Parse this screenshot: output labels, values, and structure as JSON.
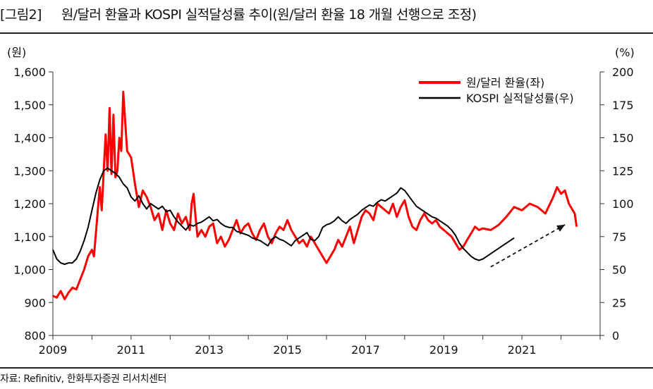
{
  "header": {
    "tag": "[그림2]",
    "title": "원/달러 환율과 KOSPI 실적달성률 추이(원/달러 환율 18 개월 선행으로 조정)"
  },
  "footer": {
    "source": "자료: Refinitiv, 한화투자증권 리서치센터"
  },
  "chart_data": {
    "type": "line",
    "title": "원/달러 환율과 KOSPI 실적달성률 추이(원/달러 환율 18 개월 선행으로 조정)",
    "left_axis": {
      "label": "(원)",
      "range": [
        800,
        1600
      ],
      "ticks": [
        "800",
        "900",
        "1,000",
        "1,100",
        "1,200",
        "1,300",
        "1,400",
        "1,500",
        "1,600"
      ]
    },
    "right_axis": {
      "label": "(%)",
      "range": [
        0,
        200
      ],
      "ticks": [
        "0",
        "25",
        "50",
        "75",
        "100",
        "125",
        "150",
        "175",
        "200"
      ]
    },
    "x_axis": {
      "range": [
        2009,
        2023
      ],
      "ticks": [
        "2009",
        "2011",
        "2013",
        "2015",
        "2017",
        "2019",
        "2021"
      ]
    },
    "legend_position": "top-right",
    "series": [
      {
        "name": "원/달러 환율(좌)",
        "axis": "left",
        "color": "#ff0000",
        "points": [
          [
            2009.0,
            920
          ],
          [
            2009.1,
            915
          ],
          [
            2009.2,
            935
          ],
          [
            2009.3,
            910
          ],
          [
            2009.4,
            930
          ],
          [
            2009.5,
            945
          ],
          [
            2009.6,
            940
          ],
          [
            2009.7,
            970
          ],
          [
            2009.8,
            1000
          ],
          [
            2009.9,
            1040
          ],
          [
            2010.0,
            1060
          ],
          [
            2010.05,
            1040
          ],
          [
            2010.1,
            1110
          ],
          [
            2010.15,
            1180
          ],
          [
            2010.2,
            1250
          ],
          [
            2010.25,
            1180
          ],
          [
            2010.3,
            1300
          ],
          [
            2010.35,
            1410
          ],
          [
            2010.4,
            1300
          ],
          [
            2010.45,
            1490
          ],
          [
            2010.5,
            1290
          ],
          [
            2010.55,
            1470
          ],
          [
            2010.6,
            1280
          ],
          [
            2010.65,
            1300
          ],
          [
            2010.7,
            1400
          ],
          [
            2010.75,
            1360
          ],
          [
            2010.8,
            1540
          ],
          [
            2010.85,
            1450
          ],
          [
            2010.9,
            1360
          ],
          [
            2011.0,
            1340
          ],
          [
            2011.1,
            1260
          ],
          [
            2011.2,
            1190
          ],
          [
            2011.3,
            1240
          ],
          [
            2011.4,
            1220
          ],
          [
            2011.5,
            1190
          ],
          [
            2011.6,
            1150
          ],
          [
            2011.7,
            1170
          ],
          [
            2011.8,
            1120
          ],
          [
            2011.9,
            1180
          ],
          [
            2012.0,
            1140
          ],
          [
            2012.1,
            1120
          ],
          [
            2012.2,
            1170
          ],
          [
            2012.3,
            1140
          ],
          [
            2012.4,
            1160
          ],
          [
            2012.5,
            1120
          ],
          [
            2012.55,
            1200
          ],
          [
            2012.6,
            1230
          ],
          [
            2012.65,
            1160
          ],
          [
            2012.7,
            1100
          ],
          [
            2012.8,
            1120
          ],
          [
            2012.9,
            1100
          ],
          [
            2013.0,
            1130
          ],
          [
            2013.1,
            1140
          ],
          [
            2013.2,
            1080
          ],
          [
            2013.3,
            1100
          ],
          [
            2013.4,
            1070
          ],
          [
            2013.5,
            1090
          ],
          [
            2013.6,
            1120
          ],
          [
            2013.7,
            1150
          ],
          [
            2013.8,
            1110
          ],
          [
            2013.9,
            1130
          ],
          [
            2014.0,
            1140
          ],
          [
            2014.1,
            1110
          ],
          [
            2014.2,
            1090
          ],
          [
            2014.3,
            1120
          ],
          [
            2014.4,
            1140
          ],
          [
            2014.5,
            1100
          ],
          [
            2014.6,
            1080
          ],
          [
            2014.7,
            1110
          ],
          [
            2014.8,
            1130
          ],
          [
            2014.9,
            1120
          ],
          [
            2015.0,
            1150
          ],
          [
            2015.1,
            1120
          ],
          [
            2015.2,
            1100
          ],
          [
            2015.3,
            1080
          ],
          [
            2015.4,
            1090
          ],
          [
            2015.5,
            1070
          ],
          [
            2015.6,
            1100
          ],
          [
            2015.7,
            1080
          ],
          [
            2015.8,
            1060
          ],
          [
            2015.9,
            1040
          ],
          [
            2016.0,
            1020
          ],
          [
            2016.1,
            1040
          ],
          [
            2016.2,
            1060
          ],
          [
            2016.3,
            1090
          ],
          [
            2016.4,
            1070
          ],
          [
            2016.5,
            1100
          ],
          [
            2016.6,
            1130
          ],
          [
            2016.7,
            1080
          ],
          [
            2016.8,
            1120
          ],
          [
            2016.9,
            1160
          ],
          [
            2017.0,
            1180
          ],
          [
            2017.1,
            1170
          ],
          [
            2017.2,
            1150
          ],
          [
            2017.3,
            1200
          ],
          [
            2017.4,
            1190
          ],
          [
            2017.5,
            1180
          ],
          [
            2017.6,
            1170
          ],
          [
            2017.7,
            1200
          ],
          [
            2017.8,
            1160
          ],
          [
            2017.9,
            1190
          ],
          [
            2018.0,
            1210
          ],
          [
            2018.1,
            1160
          ],
          [
            2018.2,
            1130
          ],
          [
            2018.3,
            1120
          ],
          [
            2018.4,
            1150
          ],
          [
            2018.5,
            1170
          ],
          [
            2018.6,
            1150
          ],
          [
            2018.7,
            1140
          ],
          [
            2018.8,
            1150
          ],
          [
            2018.9,
            1130
          ],
          [
            2019.0,
            1120
          ],
          [
            2019.1,
            1110
          ],
          [
            2019.2,
            1100
          ],
          [
            2019.3,
            1080
          ],
          [
            2019.4,
            1060
          ],
          [
            2019.5,
            1070
          ],
          [
            2019.6,
            1090
          ],
          [
            2019.7,
            1110
          ],
          [
            2019.8,
            1130
          ],
          [
            2019.9,
            1120
          ],
          [
            2020.0,
            1125
          ],
          [
            2020.2,
            1120
          ],
          [
            2020.4,
            1135
          ],
          [
            2020.6,
            1160
          ],
          [
            2020.8,
            1190
          ],
          [
            2021.0,
            1180
          ],
          [
            2021.2,
            1200
          ],
          [
            2021.4,
            1190
          ],
          [
            2021.6,
            1170
          ],
          [
            2021.8,
            1220
          ],
          [
            2021.9,
            1250
          ],
          [
            2022.0,
            1230
          ],
          [
            2022.1,
            1240
          ],
          [
            2022.2,
            1200
          ],
          [
            2022.3,
            1180
          ],
          [
            2022.35,
            1170
          ],
          [
            2022.4,
            1130
          ]
        ]
      },
      {
        "name": "KOSPI 실적달성률(우)",
        "axis": "right",
        "color": "#000000",
        "points": [
          [
            2009.0,
            65
          ],
          [
            2009.1,
            58
          ],
          [
            2009.2,
            55
          ],
          [
            2009.3,
            54
          ],
          [
            2009.4,
            55
          ],
          [
            2009.5,
            55
          ],
          [
            2009.6,
            58
          ],
          [
            2009.7,
            64
          ],
          [
            2009.8,
            72
          ],
          [
            2009.9,
            82
          ],
          [
            2010.0,
            95
          ],
          [
            2010.1,
            108
          ],
          [
            2010.2,
            118
          ],
          [
            2010.3,
            125
          ],
          [
            2010.4,
            127
          ],
          [
            2010.5,
            125
          ],
          [
            2010.6,
            123
          ],
          [
            2010.7,
            120
          ],
          [
            2010.8,
            115
          ],
          [
            2010.9,
            112
          ],
          [
            2011.0,
            105
          ],
          [
            2011.1,
            102
          ],
          [
            2011.2,
            106
          ],
          [
            2011.3,
            100
          ],
          [
            2011.4,
            96
          ],
          [
            2011.5,
            100
          ],
          [
            2011.6,
            98
          ],
          [
            2011.7,
            96
          ],
          [
            2011.8,
            98
          ],
          [
            2011.9,
            94
          ],
          [
            2012.0,
            95
          ],
          [
            2012.1,
            90
          ],
          [
            2012.2,
            86
          ],
          [
            2012.3,
            83
          ],
          [
            2012.4,
            80
          ],
          [
            2012.5,
            84
          ],
          [
            2012.6,
            83
          ],
          [
            2012.7,
            85
          ],
          [
            2012.8,
            86
          ],
          [
            2012.9,
            88
          ],
          [
            2013.0,
            90
          ],
          [
            2013.1,
            87
          ],
          [
            2013.2,
            88
          ],
          [
            2013.3,
            85
          ],
          [
            2013.4,
            83
          ],
          [
            2013.5,
            82
          ],
          [
            2013.6,
            82
          ],
          [
            2013.7,
            79
          ],
          [
            2013.8,
            78
          ],
          [
            2013.9,
            77
          ],
          [
            2014.0,
            76
          ],
          [
            2014.1,
            74
          ],
          [
            2014.2,
            73
          ],
          [
            2014.3,
            72
          ],
          [
            2014.4,
            70
          ],
          [
            2014.5,
            68
          ],
          [
            2014.6,
            73
          ],
          [
            2014.7,
            75
          ],
          [
            2014.8,
            73
          ],
          [
            2014.9,
            72
          ],
          [
            2015.0,
            70
          ],
          [
            2015.1,
            68
          ],
          [
            2015.2,
            72
          ],
          [
            2015.3,
            74
          ],
          [
            2015.4,
            76
          ],
          [
            2015.5,
            78
          ],
          [
            2015.6,
            73
          ],
          [
            2015.7,
            72
          ],
          [
            2015.8,
            75
          ],
          [
            2015.9,
            82
          ],
          [
            2016.0,
            84
          ],
          [
            2016.1,
            85
          ],
          [
            2016.2,
            87
          ],
          [
            2016.3,
            90
          ],
          [
            2016.4,
            87
          ],
          [
            2016.5,
            85
          ],
          [
            2016.6,
            88
          ],
          [
            2016.7,
            90
          ],
          [
            2016.8,
            92
          ],
          [
            2016.9,
            95
          ],
          [
            2017.0,
            97
          ],
          [
            2017.1,
            99
          ],
          [
            2017.2,
            98
          ],
          [
            2017.3,
            101
          ],
          [
            2017.4,
            103
          ],
          [
            2017.5,
            102
          ],
          [
            2017.6,
            104
          ],
          [
            2017.7,
            106
          ],
          [
            2017.8,
            108
          ],
          [
            2017.9,
            112
          ],
          [
            2018.0,
            110
          ],
          [
            2018.1,
            106
          ],
          [
            2018.2,
            102
          ],
          [
            2018.3,
            98
          ],
          [
            2018.4,
            96
          ],
          [
            2018.5,
            94
          ],
          [
            2018.6,
            92
          ],
          [
            2018.7,
            90
          ],
          [
            2018.8,
            89
          ],
          [
            2018.9,
            87
          ],
          [
            2019.0,
            85
          ],
          [
            2019.1,
            83
          ],
          [
            2019.2,
            80
          ],
          [
            2019.3,
            76
          ],
          [
            2019.4,
            70
          ],
          [
            2019.5,
            66
          ],
          [
            2019.6,
            63
          ],
          [
            2019.7,
            60
          ],
          [
            2019.8,
            58
          ],
          [
            2019.9,
            57
          ],
          [
            2020.0,
            58
          ],
          [
            2020.1,
            60
          ],
          [
            2020.2,
            62
          ],
          [
            2020.3,
            64
          ],
          [
            2020.4,
            66
          ],
          [
            2020.5,
            68
          ],
          [
            2020.6,
            70
          ],
          [
            2020.7,
            72
          ],
          [
            2020.8,
            74
          ]
        ]
      }
    ],
    "annotations": [
      {
        "type": "arrow",
        "style": "dashed",
        "from": [
          2020.2,
          52
        ],
        "to": [
          2022.1,
          84
        ]
      }
    ]
  }
}
